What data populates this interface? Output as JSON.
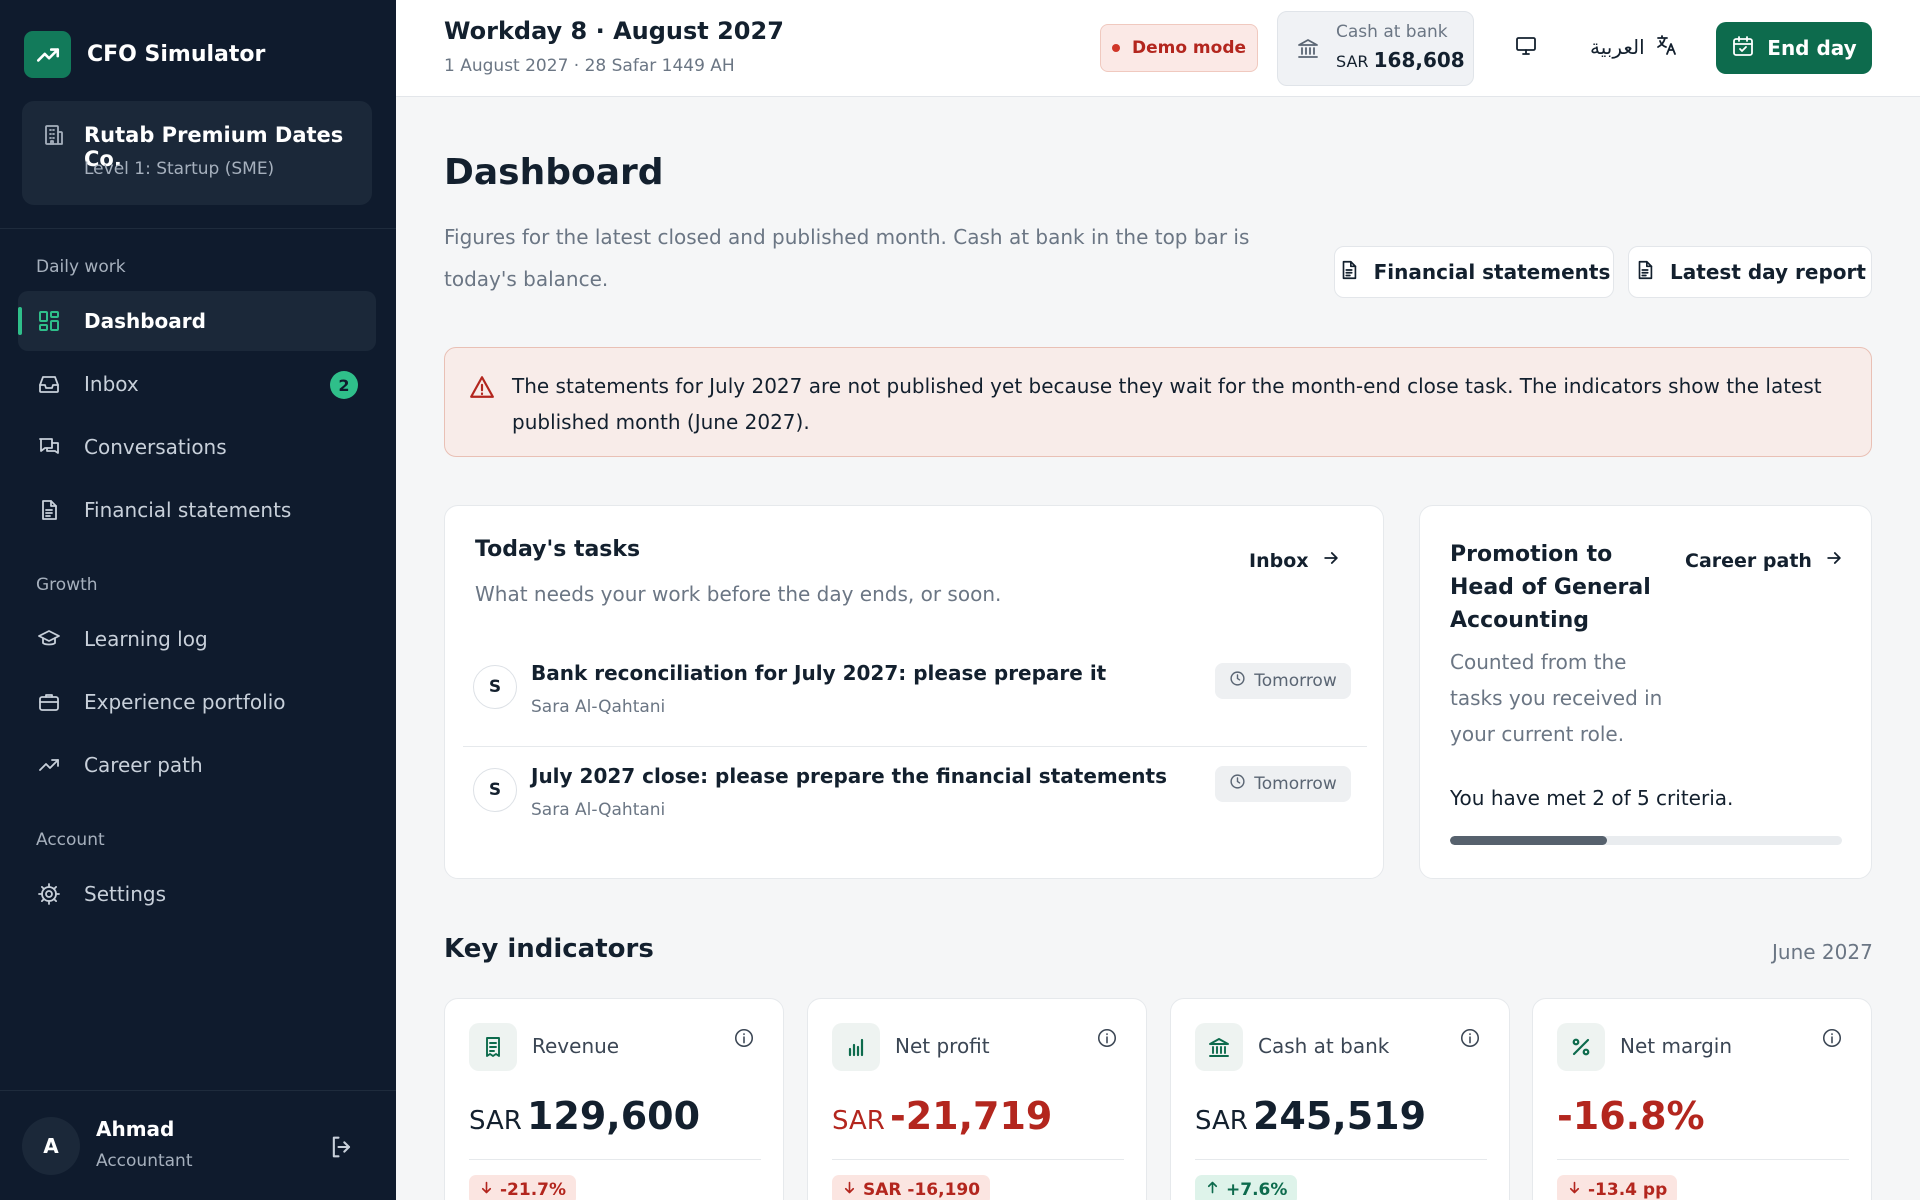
{
  "app": {
    "name": "CFO Simulator"
  },
  "company": {
    "name": "Rutab Premium Dates Co.",
    "level": "Level 1: Startup (SME)"
  },
  "sidebar": {
    "sections": [
      "Daily work",
      "Growth",
      "Account"
    ],
    "items": [
      {
        "label": "Dashboard",
        "icon": "dashboard-icon",
        "active": true
      },
      {
        "label": "Inbox",
        "icon": "inbox-icon",
        "badge": "2"
      },
      {
        "label": "Conversations",
        "icon": "conversations-icon"
      },
      {
        "label": "Financial statements",
        "icon": "document-icon"
      },
      {
        "label": "Learning log",
        "icon": "graduation-cap-icon"
      },
      {
        "label": "Experience portfolio",
        "icon": "briefcase-icon"
      },
      {
        "label": "Career path",
        "icon": "trending-up-icon"
      },
      {
        "label": "Settings",
        "icon": "gear-icon"
      }
    ]
  },
  "user": {
    "initial": "A",
    "name": "Ahmad",
    "role": "Accountant"
  },
  "topbar": {
    "workday": "Workday 8 · August 2027",
    "date": "1 August 2027 · 28 Safar 1449 AH",
    "demo_label": "Demo mode",
    "cash_label": "Cash at bank",
    "cash_currency": "SAR",
    "cash_value": "168,608",
    "language_label": "العربية",
    "end_day_label": "End day"
  },
  "main": {
    "title": "Dashboard",
    "subtitle": "Figures for the latest closed and published month. Cash at bank in the top bar is today's balance.",
    "buttons": {
      "statements": "Financial statements",
      "report": "Latest day report"
    },
    "alert": "The statements for July 2027 are not published yet because they wait for the month-end close task. The indicators show the latest published month (June 2027)."
  },
  "tasks": {
    "title": "Today's tasks",
    "subtitle": "What needs your work before the day ends, or soon.",
    "link": "Inbox",
    "items": [
      {
        "initial": "S",
        "title": "Bank reconciliation for July 2027: please prepare it",
        "owner": "Sara Al-Qahtani",
        "due": "Tomorrow"
      },
      {
        "initial": "S",
        "title": "July 2027 close: please prepare the financial statements",
        "owner": "Sara Al-Qahtani",
        "due": "Tomorrow"
      }
    ]
  },
  "promotion": {
    "title": "Promotion to Head of General Accounting",
    "link": "Career path",
    "subtitle": "Counted from the tasks you received in your current role.",
    "met_text": "You have met 2 of 5 criteria.",
    "met": 2,
    "total": 5
  },
  "indicators": {
    "title": "Key indicators",
    "period": "June 2027",
    "items": [
      {
        "label": "Revenue",
        "icon": "receipt-icon",
        "currency": "SAR",
        "value": "129,600",
        "negative": false,
        "delta": "-21.7%",
        "delta_dir": "down"
      },
      {
        "label": "Net profit",
        "icon": "bar-chart-icon",
        "currency": "SAR",
        "value": "-21,719",
        "negative": true,
        "delta": "SAR -16,190",
        "delta_dir": "down"
      },
      {
        "label": "Cash at bank",
        "icon": "bank-icon",
        "currency": "SAR",
        "value": "245,519",
        "negative": false,
        "delta": "+7.6%",
        "delta_dir": "up"
      },
      {
        "label": "Net margin",
        "icon": "percent-icon",
        "currency": "",
        "value": "-16.8%",
        "negative": true,
        "delta": "-13.4 pp",
        "delta_dir": "down"
      }
    ]
  },
  "colors": {
    "sidebar": "#0f1b2d",
    "accent": "#0d6b4d",
    "positive": "#0d6b4d",
    "negative": "#b3261e"
  }
}
